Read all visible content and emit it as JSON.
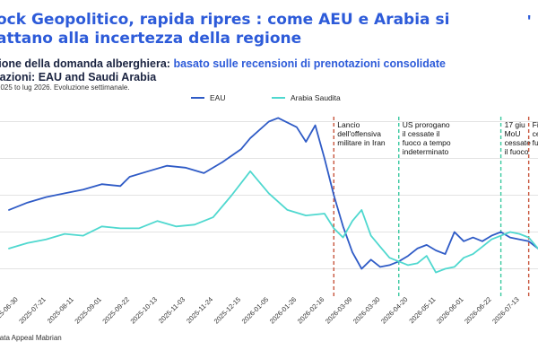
{
  "title": {
    "line1": "ock Geopolitico, rapida ripres : come AEU e Arabia si",
    "line2": "attano alla incertezza della regione"
  },
  "subtitle": {
    "prefix": "zione della domanda alberghiera:",
    "accent": " basato sulle recensioni di prenotazioni consolidate",
    "line2": "nazioni: EAU and Saudi Arabia",
    "note": "2025 to lug 2026. Evoluzione settimanale."
  },
  "brand": "'",
  "source": "Data Appeal Mabrian",
  "colors": {
    "eau": "#2f5bc6",
    "saudi": "#4fd8cf",
    "event_red": "#c8553d",
    "event_green": "#3ac9a0",
    "grid": "#e3e3e3",
    "title": "#2d5bd9"
  },
  "chart_data": {
    "type": "line",
    "x_ticks": [
      "2025-06-30",
      "2025-07-21",
      "2025-08-11",
      "2025-09-01",
      "2025-09-22",
      "2025-10-13",
      "2025-11-03",
      "2025-11-24",
      "2025-12-15",
      "2026-01-05",
      "2026-01-26",
      "2026-02-16",
      "2026-03-09",
      "2026-03-30",
      "2026-04-20",
      "2026-05-11",
      "2026-06-01",
      "2026-06-22",
      "2026-07-13"
    ],
    "x_start": "2025-06-23",
    "x_end": "2026-07-27",
    "legend": {
      "position": "top-left",
      "entries": [
        "EAU",
        "Arabia Saudita"
      ]
    },
    "grid": true,
    "series": [
      {
        "name": "EAU",
        "x": [
          "2025-06-23",
          "2025-07-07",
          "2025-07-21",
          "2025-08-04",
          "2025-08-18",
          "2025-09-01",
          "2025-09-15",
          "2025-09-22",
          "2025-10-06",
          "2025-10-20",
          "2025-11-03",
          "2025-11-17",
          "2025-12-01",
          "2025-12-15",
          "2025-12-22",
          "2026-01-05",
          "2026-01-12",
          "2026-01-26",
          "2026-02-02",
          "2026-02-09",
          "2026-02-16",
          "2026-02-23",
          "2026-03-02",
          "2026-03-09",
          "2026-03-16",
          "2026-03-23",
          "2026-03-30",
          "2026-04-06",
          "2026-04-13",
          "2026-04-20",
          "2026-04-27",
          "2026-05-04",
          "2026-05-11",
          "2026-05-18",
          "2026-05-25",
          "2026-06-01",
          "2026-06-08",
          "2026-06-15",
          "2026-06-22",
          "2026-06-29",
          "2026-07-06",
          "2026-07-13",
          "2026-07-20",
          "2026-07-27"
        ],
        "y": [
          72,
          76,
          79,
          81,
          83,
          86,
          85,
          90,
          93,
          96,
          95,
          92,
          98,
          105,
          111,
          120,
          122,
          117,
          109,
          118,
          100,
          80,
          63,
          49,
          40,
          45,
          41,
          42,
          44,
          47,
          51,
          53,
          50,
          48,
          60,
          55,
          57,
          55,
          58,
          60,
          57,
          56,
          55,
          51
        ]
      },
      {
        "name": "Arabia Saudita",
        "x": [
          "2025-06-23",
          "2025-07-07",
          "2025-07-21",
          "2025-08-04",
          "2025-08-18",
          "2025-09-01",
          "2025-09-15",
          "2025-09-29",
          "2025-10-13",
          "2025-10-27",
          "2025-11-10",
          "2025-11-24",
          "2025-12-08",
          "2025-12-22",
          "2026-01-05",
          "2026-01-19",
          "2026-02-02",
          "2026-02-16",
          "2026-02-23",
          "2026-03-02",
          "2026-03-09",
          "2026-03-16",
          "2026-03-23",
          "2026-03-30",
          "2026-04-06",
          "2026-04-13",
          "2026-04-20",
          "2026-04-27",
          "2026-05-04",
          "2026-05-11",
          "2026-05-18",
          "2026-05-25",
          "2026-06-01",
          "2026-06-08",
          "2026-06-15",
          "2026-06-22",
          "2026-06-29",
          "2026-07-06",
          "2026-07-13",
          "2026-07-20",
          "2026-07-27"
        ],
        "y": [
          51,
          54,
          56,
          59,
          58,
          63,
          62,
          62,
          66,
          63,
          64,
          68,
          80,
          93,
          81,
          72,
          69,
          70,
          62,
          57,
          66,
          72,
          58,
          52,
          46,
          44,
          42,
          43,
          47,
          38,
          40,
          41,
          46,
          48,
          52,
          56,
          58,
          60,
          59,
          57,
          51
        ]
      }
    ],
    "annotations": [
      {
        "date": "2026-02-23",
        "color": "red",
        "lines": [
          "Lancio",
          "dell'offensiva",
          "militare in Iran"
        ]
      },
      {
        "date": "2026-04-13",
        "color": "green",
        "lines": [
          "US prorogano",
          "il cessate il",
          "fuoco a tempo",
          "indeterminato"
        ]
      },
      {
        "date": "2026-06-29",
        "color": "green",
        "lines": [
          "17 giu",
          "MoU",
          "cessate",
          "il fuoco"
        ]
      },
      {
        "date": "2026-07-20",
        "color": "red",
        "lines": [
          "Fine de",
          "cessat",
          "fuoco"
        ]
      }
    ]
  }
}
